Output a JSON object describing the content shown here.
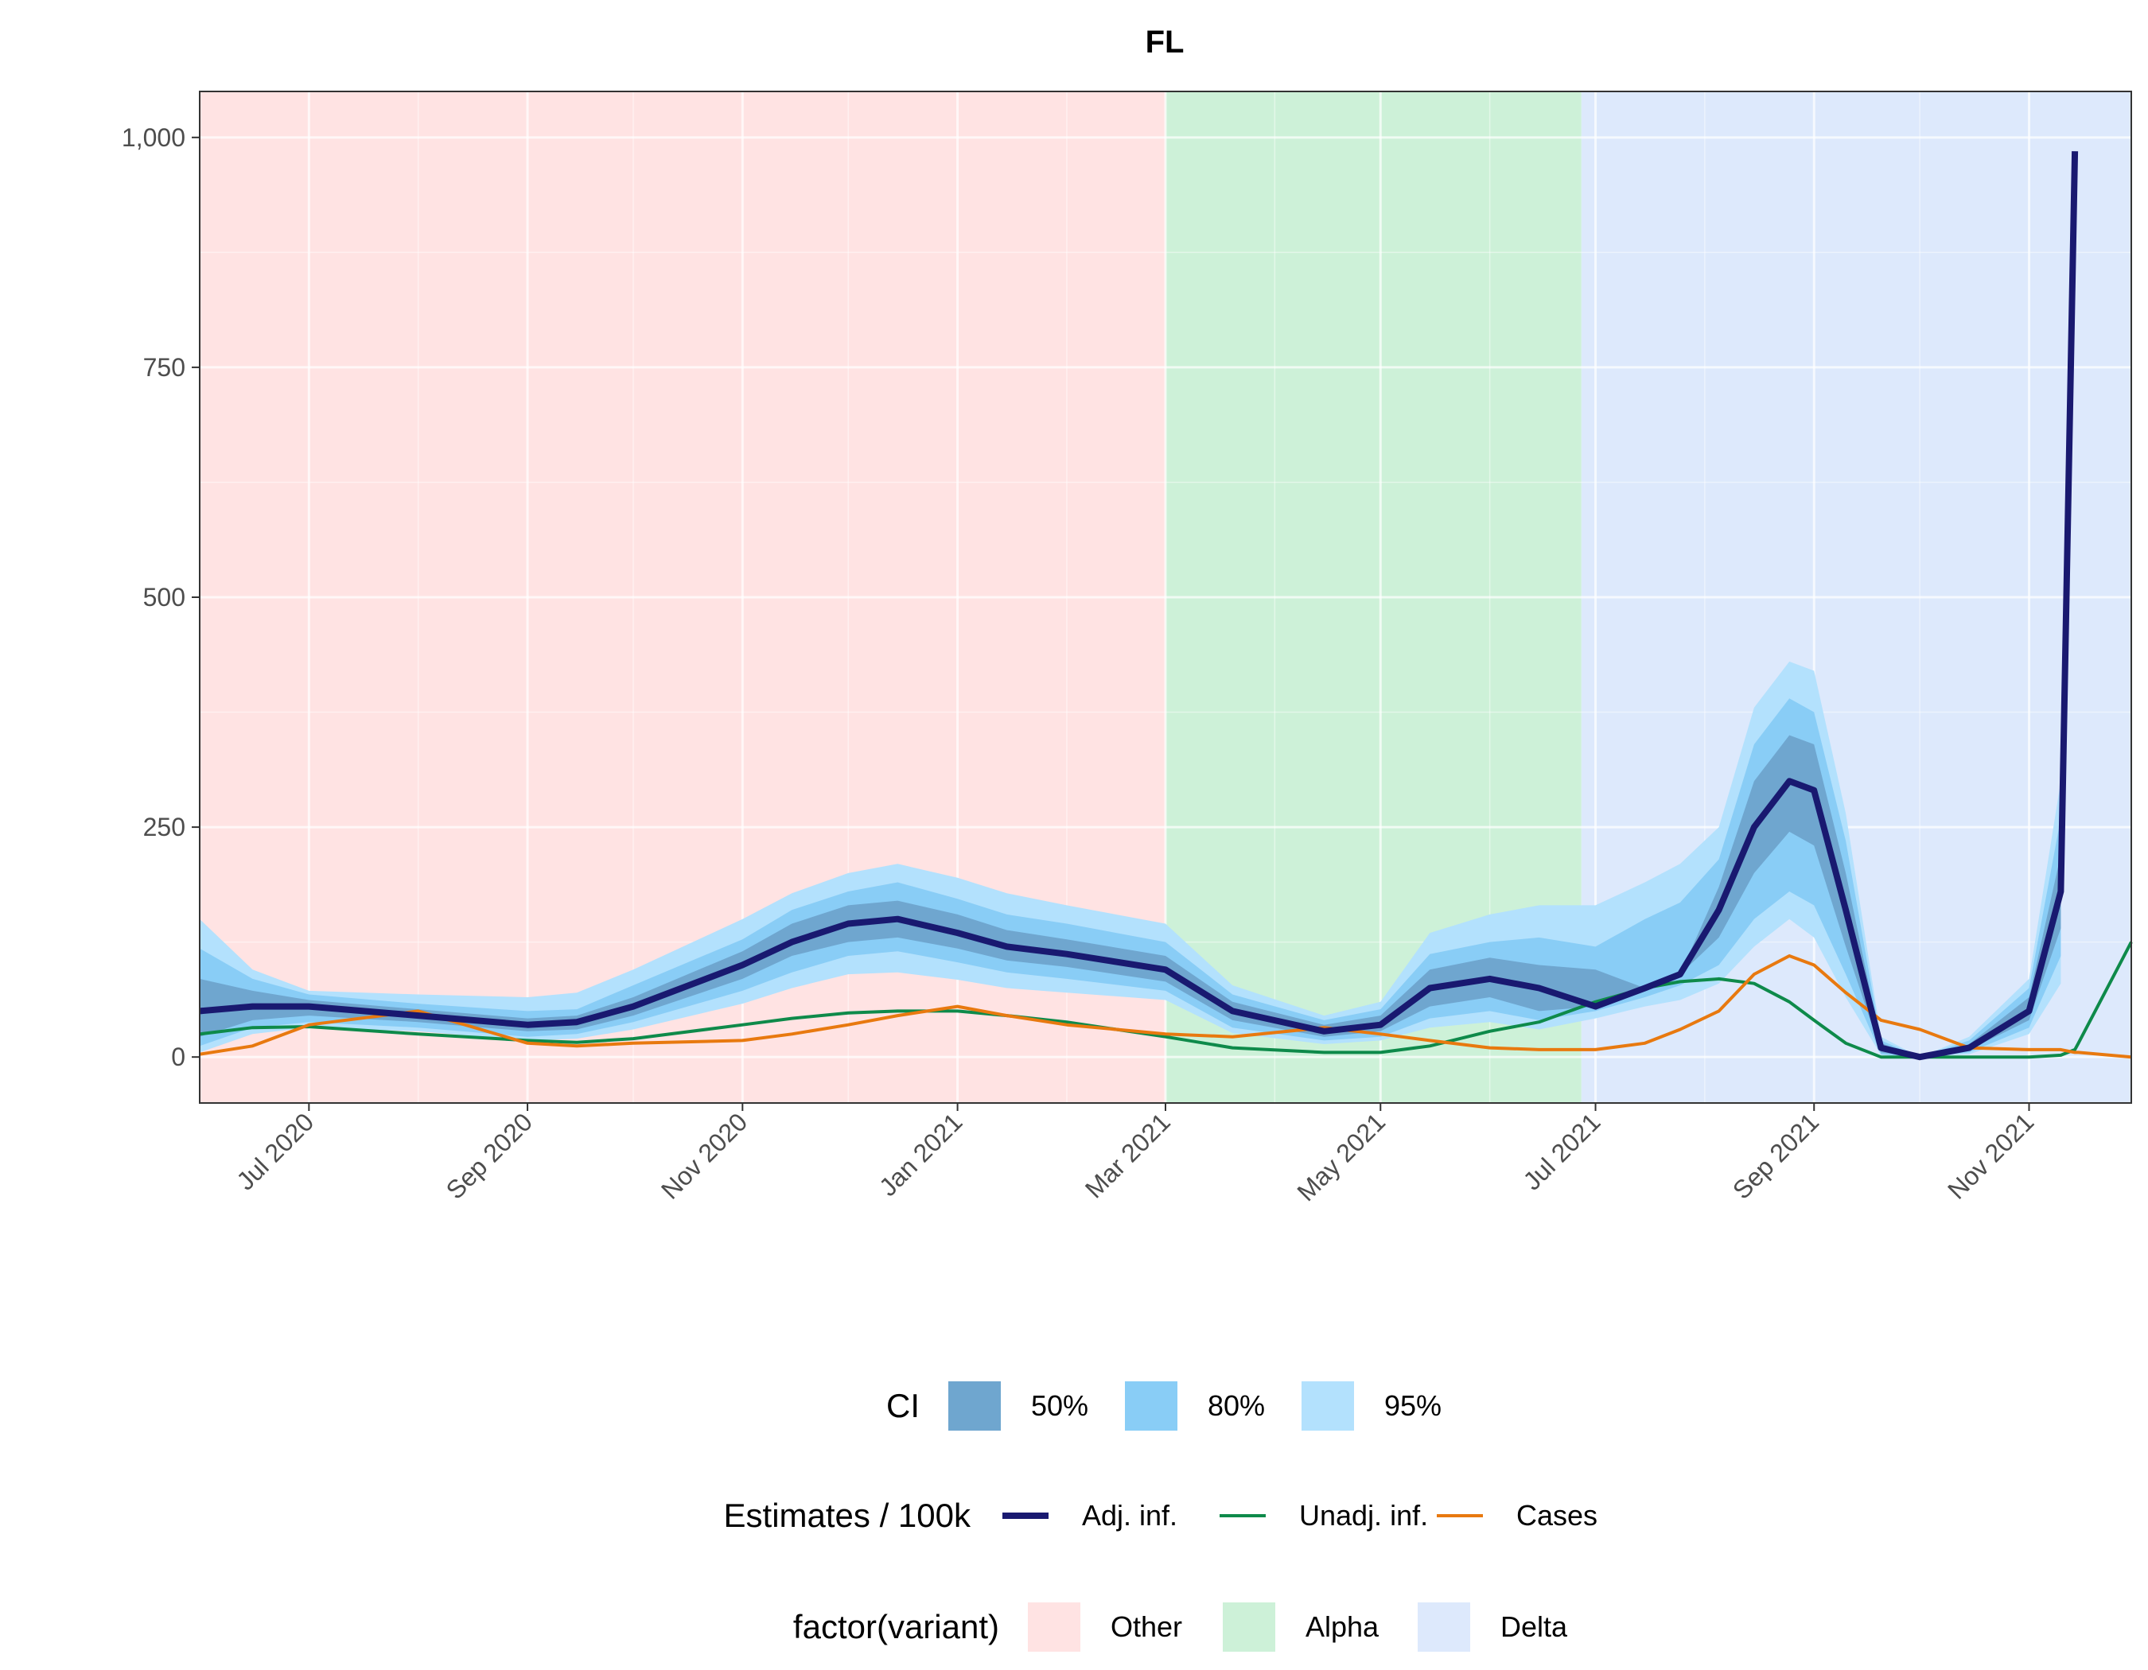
{
  "chart_data": {
    "type": "area",
    "title": "FL",
    "xlabel": "",
    "ylabel": "",
    "x_range": [
      "2020-05-31",
      "2021-11-30"
    ],
    "ylim": [
      -50,
      1050
    ],
    "y_ticks": [
      0,
      250,
      500,
      750,
      1000
    ],
    "y_tick_labels": [
      "0",
      "250",
      "500",
      "750",
      "1,000"
    ],
    "x_ticks": [
      "2020-07-01",
      "2020-09-01",
      "2020-11-01",
      "2021-01-01",
      "2021-03-01",
      "2021-05-01",
      "2021-07-01",
      "2021-09-01",
      "2021-11-01"
    ],
    "x_tick_labels": [
      "Jul 2020",
      "Sep 2020",
      "Nov 2020",
      "Jan 2021",
      "Mar 2021",
      "May 2021",
      "Jul 2021",
      "Sep 2021",
      "Nov 2021"
    ],
    "grid": true,
    "legend_position": "bottom",
    "colors": {
      "ci50": "#6fa6cf",
      "ci80": "#89cdf6",
      "ci95": "#b3e1fd",
      "adj": "#191970",
      "unadj": "#0e8a4a",
      "cases": "#e8790f",
      "variant_other": "#ffe3e3",
      "variant_alpha": "#cdf1d8",
      "variant_delta": "#dde9fc"
    },
    "variants": [
      {
        "name": "Other",
        "start": "2020-05-31",
        "end": "2021-03-01"
      },
      {
        "name": "Alpha",
        "start": "2021-03-01",
        "end": "2021-06-27"
      },
      {
        "name": "Delta",
        "start": "2021-06-27",
        "end": "2021-11-30"
      }
    ],
    "x": [
      "2020-05-31",
      "2020-06-15",
      "2020-07-01",
      "2020-08-01",
      "2020-09-01",
      "2020-09-15",
      "2020-10-01",
      "2020-11-01",
      "2020-11-15",
      "2020-12-01",
      "2020-12-15",
      "2021-01-01",
      "2021-01-15",
      "2021-02-01",
      "2021-03-01",
      "2021-03-20",
      "2021-04-15",
      "2021-05-01",
      "2021-05-15",
      "2021-06-01",
      "2021-06-15",
      "2021-07-01",
      "2021-07-15",
      "2021-07-25",
      "2021-08-05",
      "2021-08-15",
      "2021-08-25",
      "2021-09-01",
      "2021-09-10",
      "2021-09-20",
      "2021-10-01",
      "2021-10-15",
      "2021-11-01",
      "2021-11-10",
      "2021-11-14",
      "2021-11-15",
      "2021-11-30"
    ],
    "series": [
      {
        "name": "Adj. inf.",
        "values": [
          50,
          55,
          55,
          45,
          35,
          38,
          55,
          100,
          125,
          145,
          150,
          135,
          120,
          112,
          95,
          50,
          28,
          35,
          75,
          85,
          75,
          55,
          75,
          90,
          160,
          250,
          300,
          290,
          160,
          10,
          0,
          10,
          50,
          180,
          985,
          null,
          null
        ]
      },
      {
        "name": "Unadj. inf.",
        "values": [
          25,
          32,
          33,
          25,
          18,
          16,
          20,
          35,
          42,
          48,
          50,
          50,
          45,
          38,
          22,
          10,
          5,
          5,
          12,
          28,
          38,
          60,
          75,
          82,
          85,
          80,
          60,
          40,
          15,
          0,
          0,
          0,
          0,
          2,
          8,
          15,
          125
        ]
      },
      {
        "name": "Cases",
        "values": [
          3,
          12,
          35,
          50,
          15,
          12,
          15,
          18,
          25,
          35,
          45,
          55,
          45,
          35,
          25,
          22,
          32,
          25,
          18,
          10,
          8,
          8,
          15,
          30,
          50,
          90,
          110,
          100,
          70,
          40,
          30,
          10,
          8,
          8,
          5,
          5,
          0
        ]
      },
      {
        "name": "50%",
        "lower": [
          22,
          40,
          45,
          38,
          28,
          30,
          45,
          85,
          110,
          125,
          130,
          118,
          105,
          98,
          82,
          40,
          22,
          28,
          55,
          65,
          50,
          55,
          75,
          90,
          130,
          200,
          245,
          230,
          120,
          5,
          0,
          8,
          40,
          140,
          null,
          null,
          null
        ],
        "upper": [
          85,
          72,
          62,
          52,
          42,
          45,
          65,
          115,
          145,
          165,
          170,
          155,
          138,
          128,
          110,
          60,
          35,
          45,
          95,
          108,
          100,
          95,
          75,
          90,
          185,
          300,
          350,
          340,
          200,
          15,
          0,
          14,
          65,
          220,
          null,
          null,
          null
        ]
      },
      {
        "name": "80%",
        "lower": [
          12,
          32,
          38,
          32,
          22,
          25,
          38,
          72,
          92,
          110,
          115,
          103,
          92,
          85,
          72,
          32,
          18,
          22,
          42,
          50,
          40,
          50,
          65,
          78,
          100,
          150,
          180,
          165,
          90,
          3,
          0,
          5,
          32,
          110,
          null,
          null,
          null
        ],
        "upper": [
          118,
          85,
          68,
          58,
          50,
          52,
          78,
          128,
          160,
          180,
          190,
          172,
          155,
          145,
          125,
          68,
          40,
          52,
          112,
          125,
          130,
          120,
          150,
          168,
          215,
          340,
          390,
          375,
          235,
          18,
          0,
          18,
          75,
          260,
          null,
          null,
          null
        ]
      },
      {
        "name": "95%",
        "lower": [
          5,
          25,
          32,
          28,
          18,
          20,
          30,
          58,
          75,
          90,
          92,
          84,
          75,
          70,
          62,
          26,
          14,
          18,
          32,
          38,
          30,
          42,
          55,
          62,
          80,
          120,
          150,
          130,
          65,
          2,
          0,
          3,
          25,
          80,
          null,
          null,
          null
        ],
        "upper": [
          150,
          95,
          72,
          68,
          65,
          70,
          95,
          150,
          178,
          200,
          210,
          195,
          178,
          165,
          145,
          78,
          45,
          60,
          135,
          155,
          165,
          165,
          190,
          210,
          250,
          380,
          430,
          420,
          265,
          22,
          0,
          22,
          85,
          300,
          null,
          null,
          null
        ]
      }
    ],
    "legends": [
      {
        "title": "CI",
        "items": [
          {
            "label": "50%",
            "kind": "fill",
            "color": "#6fa6cf"
          },
          {
            "label": "80%",
            "kind": "fill",
            "color": "#89cdf6"
          },
          {
            "label": "95%",
            "kind": "fill",
            "color": "#b3e1fd"
          }
        ]
      },
      {
        "title": "Estimates / 100k",
        "items": [
          {
            "label": "Adj. inf.",
            "kind": "line",
            "color": "#191970"
          },
          {
            "label": "Unadj. inf.",
            "kind": "line",
            "color": "#0e8a4a"
          },
          {
            "label": "Cases",
            "kind": "line",
            "color": "#e8790f"
          }
        ]
      },
      {
        "title": "factor(variant)",
        "items": [
          {
            "label": "Other",
            "kind": "fill",
            "color": "#ffe3e3"
          },
          {
            "label": "Alpha",
            "kind": "fill",
            "color": "#cdf1d8"
          },
          {
            "label": "Delta",
            "kind": "fill",
            "color": "#dde9fc"
          }
        ]
      }
    ]
  }
}
